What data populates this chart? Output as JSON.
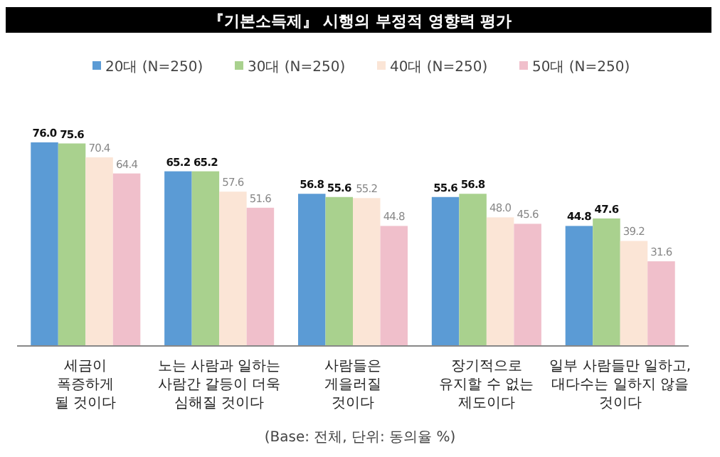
{
  "chart_data": {
    "type": "bar",
    "title": "『기본소득제』 시행의 부정적 영향력 평가",
    "categories": [
      "세금이\n폭증하게\n될 것이다",
      "노는 사람과 일하는\n사람간 갈등이 더욱\n심해질 것이다",
      "사람들은\n게을러질\n것이다",
      "장기적으로\n유지할 수 없는\n제도이다",
      "일부 사람들만 일하고,\n대다수는 일하지 않을\n것이다"
    ],
    "series": [
      {
        "name": "20대 (N=250)",
        "color": "#5b9bd5",
        "values": [
          76.0,
          65.2,
          56.8,
          55.6,
          44.8
        ],
        "value_labels": [
          "76.0",
          "65.2",
          "56.8",
          "55.6",
          "44.8"
        ]
      },
      {
        "name": "30대 (N=250)",
        "color": "#a9d18e",
        "values": [
          75.6,
          65.2,
          55.6,
          56.8,
          47.6
        ],
        "value_labels": [
          "75.6",
          "65.2",
          "55.6",
          "56.8",
          "47.6"
        ]
      },
      {
        "name": "40대 (N=250)",
        "color": "#fbe5d6",
        "values": [
          70.4,
          57.6,
          55.2,
          48.0,
          39.2
        ],
        "value_labels": [
          "70.4",
          "57.6",
          "55.2",
          "48.0",
          "39.2"
        ]
      },
      {
        "name": "50대 (N=250)",
        "color": "#f0bfcb",
        "values": [
          64.4,
          51.6,
          44.8,
          45.6,
          31.6
        ],
        "value_labels": [
          "64.4",
          "51.6",
          "44.8",
          "45.6",
          "31.6"
        ]
      }
    ],
    "tick_labels": "x",
    "legend": "top",
    "annotations": [
      "(Base: 전체, 단위: 동의율 %)"
    ]
  }
}
